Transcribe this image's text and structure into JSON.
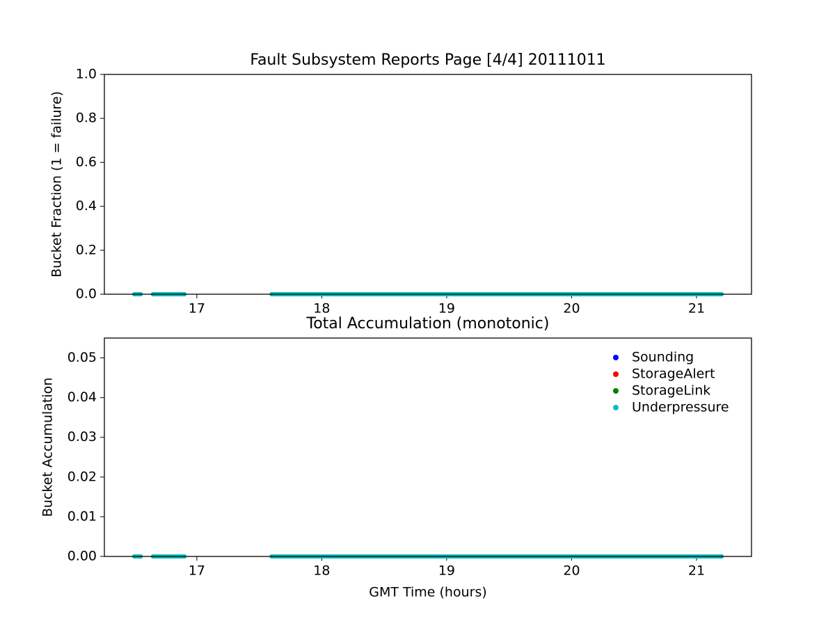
{
  "chart_data": [
    {
      "type": "line",
      "title": "Fault Subsystem Reports Page [4/4] 20111011",
      "y_label": "Bucket Fraction (1 = failure)",
      "x": [
        16.5,
        16.55,
        16.6,
        16.65,
        16.75,
        16.85,
        16.9,
        17.2,
        17.6,
        17.7,
        17.8,
        17.9,
        18.0,
        18.1,
        18.2,
        18.3,
        18.4,
        18.5,
        18.6,
        18.7,
        18.8,
        18.9,
        19.0,
        19.1,
        19.2,
        19.3,
        19.4,
        19.5,
        19.6,
        19.7,
        19.8,
        19.9,
        20.0,
        20.1,
        20.2,
        20.3,
        20.4,
        20.5,
        20.6,
        20.7,
        20.8,
        20.9,
        21.0,
        21.1,
        21.2
      ],
      "series": [
        {
          "name": "Sounding",
          "color": "#0000ff",
          "values": [
            0,
            0,
            null,
            0,
            0,
            0,
            0,
            null,
            0,
            0,
            0,
            0,
            0,
            0,
            0,
            0,
            0,
            0,
            0,
            0,
            0,
            0,
            0,
            0,
            0,
            0,
            0,
            0,
            0,
            0,
            0,
            0,
            0,
            0,
            0,
            0,
            0,
            0,
            0,
            0,
            0,
            0,
            0,
            0,
            0
          ]
        },
        {
          "name": "StorageAlert",
          "color": "#ff0000",
          "values": [
            0,
            0,
            null,
            0,
            0,
            0,
            0,
            null,
            0,
            0,
            0,
            0,
            0,
            0,
            0,
            0,
            0,
            0,
            0,
            0,
            0,
            0,
            0,
            0,
            0,
            0,
            0,
            0,
            0,
            0,
            0,
            0,
            0,
            0,
            0,
            0,
            0,
            0,
            0,
            0,
            0,
            0,
            0,
            0,
            0
          ]
        },
        {
          "name": "StorageLink",
          "color": "#008000",
          "values": [
            0,
            0,
            null,
            0,
            0,
            0,
            0,
            null,
            0,
            0,
            0,
            0,
            0,
            0,
            0,
            0,
            0,
            0,
            0,
            0,
            0,
            0,
            0,
            0,
            0,
            0,
            0,
            0,
            0,
            0,
            0,
            0,
            0,
            0,
            0,
            0,
            0,
            0,
            0,
            0,
            0,
            0,
            0,
            0,
            0
          ]
        },
        {
          "name": "Underpressure",
          "color": "#00bfbf",
          "values": [
            0,
            0,
            null,
            0,
            0,
            0,
            0,
            null,
            0,
            0,
            0,
            0,
            0,
            0,
            0,
            0,
            0,
            0,
            0,
            0,
            0,
            0,
            0,
            0,
            0,
            0,
            0,
            0,
            0,
            0,
            0,
            0,
            0,
            0,
            0,
            0,
            0,
            0,
            0,
            0,
            0,
            0,
            0,
            0,
            0
          ]
        }
      ],
      "xlim": [
        16.26,
        21.44
      ],
      "xticks": [
        17,
        18,
        19,
        20,
        21
      ],
      "ylim": [
        0,
        1
      ],
      "yticks": [
        {
          "value": 0,
          "label": "0.0"
        },
        0.2,
        0.4,
        0.6,
        0.8,
        {
          "value": 1,
          "label": "1.0"
        }
      ],
      "grid": false,
      "legend": false
    },
    {
      "type": "line",
      "title": "Total Accumulation (monotonic)",
      "x_label": "GMT Time (hours)",
      "y_label": "Bucket Accumulation",
      "x": [
        16.5,
        16.55,
        16.6,
        16.65,
        16.75,
        16.85,
        16.9,
        17.2,
        17.6,
        17.7,
        17.8,
        17.9,
        18.0,
        18.1,
        18.2,
        18.3,
        18.4,
        18.5,
        18.6,
        18.7,
        18.8,
        18.9,
        19.0,
        19.1,
        19.2,
        19.3,
        19.4,
        19.5,
        19.6,
        19.7,
        19.8,
        19.9,
        20.0,
        20.1,
        20.2,
        20.3,
        20.4,
        20.5,
        20.6,
        20.7,
        20.8,
        20.9,
        21.0,
        21.1,
        21.2
      ],
      "series": [
        {
          "name": "Sounding",
          "color": "#0000ff",
          "values": [
            0,
            0,
            null,
            0,
            0,
            0,
            0,
            null,
            0,
            0,
            0,
            0,
            0,
            0,
            0,
            0,
            0,
            0,
            0,
            0,
            0,
            0,
            0,
            0,
            0,
            0,
            0,
            0,
            0,
            0,
            0,
            0,
            0,
            0,
            0,
            0,
            0,
            0,
            0,
            0,
            0,
            0,
            0,
            0,
            0
          ]
        },
        {
          "name": "StorageAlert",
          "color": "#ff0000",
          "values": [
            0,
            0,
            null,
            0,
            0,
            0,
            0,
            null,
            0,
            0,
            0,
            0,
            0,
            0,
            0,
            0,
            0,
            0,
            0,
            0,
            0,
            0,
            0,
            0,
            0,
            0,
            0,
            0,
            0,
            0,
            0,
            0,
            0,
            0,
            0,
            0,
            0,
            0,
            0,
            0,
            0,
            0,
            0,
            0,
            0
          ]
        },
        {
          "name": "StorageLink",
          "color": "#008000",
          "values": [
            0,
            0,
            null,
            0,
            0,
            0,
            0,
            null,
            0,
            0,
            0,
            0,
            0,
            0,
            0,
            0,
            0,
            0,
            0,
            0,
            0,
            0,
            0,
            0,
            0,
            0,
            0,
            0,
            0,
            0,
            0,
            0,
            0,
            0,
            0,
            0,
            0,
            0,
            0,
            0,
            0,
            0,
            0,
            0,
            0
          ]
        },
        {
          "name": "Underpressure",
          "color": "#00bfbf",
          "values": [
            0,
            0,
            null,
            0,
            0,
            0,
            0,
            null,
            0,
            0,
            0,
            0,
            0,
            0,
            0,
            0,
            0,
            0,
            0,
            0,
            0,
            0,
            0,
            0,
            0,
            0,
            0,
            0,
            0,
            0,
            0,
            0,
            0,
            0,
            0,
            0,
            0,
            0,
            0,
            0,
            0,
            0,
            0,
            0,
            0
          ]
        }
      ],
      "xlim": [
        16.26,
        21.44
      ],
      "xticks": [
        17,
        18,
        19,
        20,
        21
      ],
      "ylim": [
        0,
        0.055
      ],
      "yticks": [
        {
          "value": 0,
          "label": "0.00"
        },
        {
          "value": 0.01,
          "label": "0.01"
        },
        {
          "value": 0.02,
          "label": "0.02"
        },
        {
          "value": 0.03,
          "label": "0.03"
        },
        {
          "value": 0.04,
          "label": "0.04"
        },
        {
          "value": 0.05,
          "label": "0.05"
        }
      ],
      "grid": false,
      "legend": "upper right"
    }
  ]
}
